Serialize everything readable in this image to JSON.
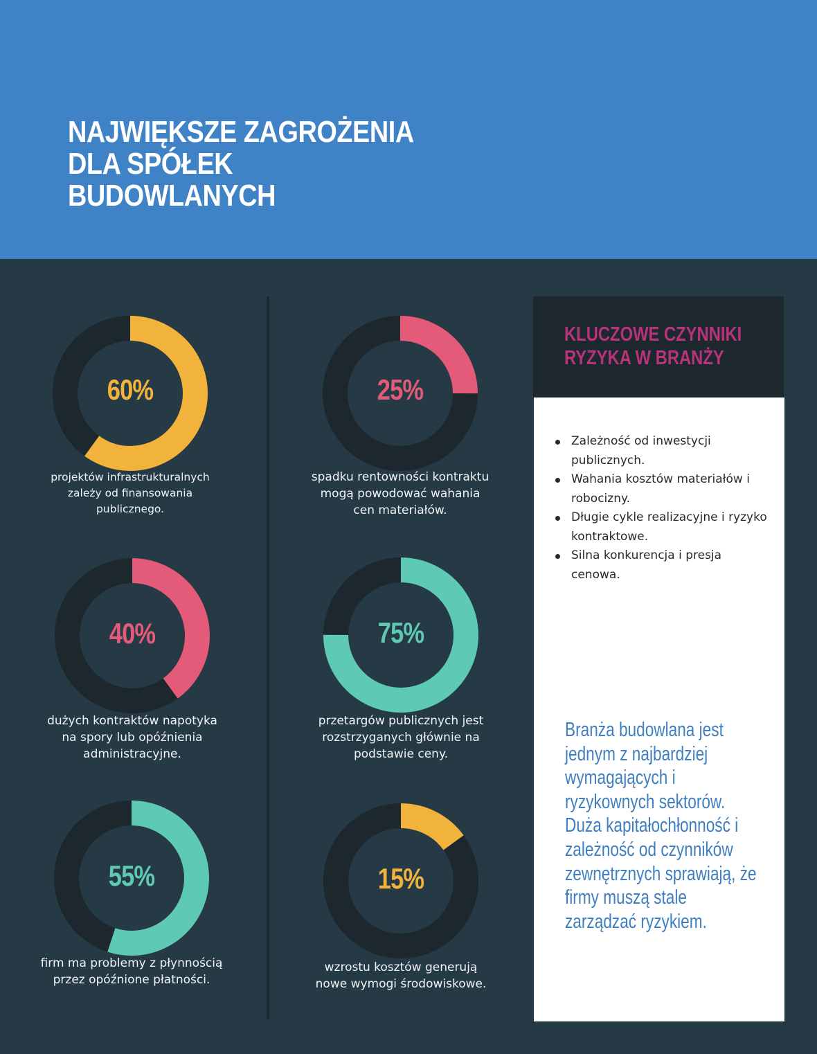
{
  "header": {
    "title_lines": [
      "NAJWIĘKSZE ZAGROŻENIA",
      "DLA SPÓŁEK",
      "BUDOWLANYCH"
    ],
    "background_color": "#3f82c6"
  },
  "colors": {
    "page_bg": "#263a45",
    "track": "#1c272e",
    "yellow": "#f2b33d",
    "pink": "#e35b79",
    "teal": "#5ecab6",
    "magenta": "#b8337a",
    "blue_text": "#3f7fc0"
  },
  "stats": [
    {
      "value": 60,
      "label": "60%",
      "color": "#f2b33d",
      "caption_lines": [
        "projektów infrastrukturalnych",
        "zależy od finansowania",
        "publicznego."
      ]
    },
    {
      "value": 25,
      "label": "25%",
      "color": "#e35b79",
      "caption_lines": [
        "spadku rentowności kontraktu",
        "mogą powodować wahania",
        "cen materiałów."
      ]
    },
    {
      "value": 40,
      "label": "40%",
      "color": "#e35b79",
      "caption_lines": [
        "dużych kontraktów napotyka",
        "na spory lub opóźnienia",
        "administracyjne."
      ]
    },
    {
      "value": 75,
      "label": "75%",
      "color": "#5ecab6",
      "caption_lines": [
        "przetargów publicznych jest",
        "rozstrzyganych głównie na",
        "podstawie ceny."
      ]
    },
    {
      "value": 55,
      "label": "55%",
      "color": "#5ecab6",
      "caption_lines": [
        "firm ma problemy z płynnością",
        "przez opóźnione płatności."
      ]
    },
    {
      "value": 15,
      "label": "15%",
      "color": "#f2b33d",
      "caption_lines": [
        "wzrostu kosztów generują",
        "nowe wymogi środowiskowe."
      ]
    }
  ],
  "sidebar": {
    "heading_lines": [
      "KLUCZOWE CZYNNIKI",
      "RYZYKA W BRANŻY"
    ],
    "risks": [
      "Zależność od inwestycji publicznych.",
      "Wahania kosztów materiałów i robocizny.",
      "Długie cykle realizacyjne i ryzyko kontraktowe.",
      "Silna konkurencja i presja cenowa."
    ],
    "summary_lines": [
      "Branża budowlana jest",
      "jednym z najbardziej",
      "wymagających i",
      "ryzykownych sektorów.",
      "Duża kapitałochłonność i",
      "zależność od czynników",
      "zewnętrznych sprawiają, że",
      "firmy muszą stale",
      "zarządzać ryzykiem."
    ]
  }
}
